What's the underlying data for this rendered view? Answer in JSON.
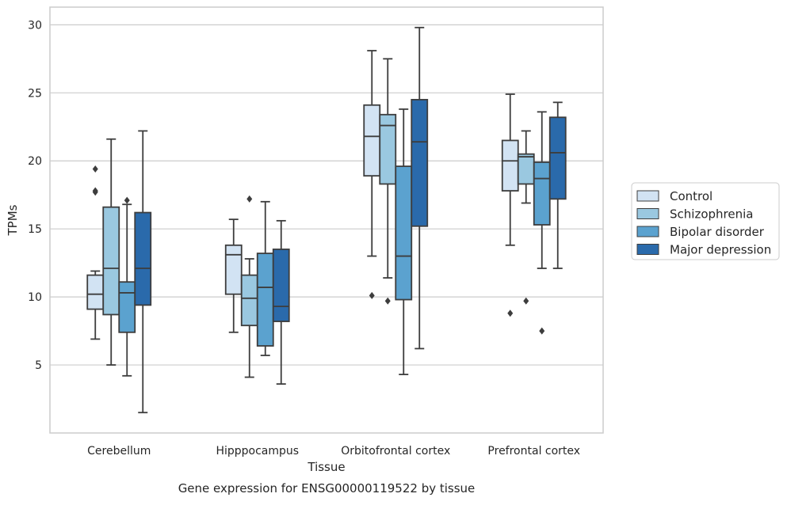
{
  "chart_data": {
    "type": "boxplot",
    "title": "",
    "caption": "Gene expression for ENSG00000119522 by tissue",
    "xlabel": "Tissue",
    "ylabel": "TPMs",
    "ylim": [
      0,
      31.3
    ],
    "yticks": [
      5,
      10,
      15,
      20,
      25,
      30
    ],
    "grid": "horizontal",
    "legend_position": "outside-right",
    "categories": [
      "Cerebellum",
      "Hipppocampus",
      "Orbitofrontal cortex",
      "Prefrontal cortex"
    ],
    "series": [
      {
        "name": "Control",
        "color": "#d2e3f3",
        "boxes": [
          {
            "whisker_low": 6.9,
            "q1": 9.1,
            "median": 10.2,
            "q3": 11.6,
            "whisker_high": 11.9,
            "outliers": [
              17.7,
              17.8,
              19.4
            ]
          },
          {
            "whisker_low": 7.4,
            "q1": 10.2,
            "median": 13.1,
            "q3": 13.8,
            "whisker_high": 15.7,
            "outliers": []
          },
          {
            "whisker_low": 13.0,
            "q1": 18.9,
            "median": 21.8,
            "q3": 24.1,
            "whisker_high": 28.1,
            "outliers": [
              10.1
            ]
          },
          {
            "whisker_low": 13.8,
            "q1": 17.8,
            "median": 20.0,
            "q3": 21.5,
            "whisker_high": 24.9,
            "outliers": [
              8.8
            ]
          }
        ]
      },
      {
        "name": "Schizophrenia",
        "color": "#9ac8e0",
        "boxes": [
          {
            "whisker_low": 5.0,
            "q1": 8.7,
            "median": 12.1,
            "q3": 16.6,
            "whisker_high": 21.6,
            "outliers": []
          },
          {
            "whisker_low": 4.1,
            "q1": 7.9,
            "median": 9.9,
            "q3": 11.6,
            "whisker_high": 12.8,
            "outliers": [
              17.2
            ]
          },
          {
            "whisker_low": 11.4,
            "q1": 18.3,
            "median": 22.6,
            "q3": 23.4,
            "whisker_high": 27.5,
            "outliers": [
              9.7
            ]
          },
          {
            "whisker_low": 16.9,
            "q1": 18.3,
            "median": 20.3,
            "q3": 20.5,
            "whisker_high": 22.2,
            "outliers": [
              9.7
            ]
          }
        ]
      },
      {
        "name": "Bipolar disorder",
        "color": "#5ba2cf",
        "boxes": [
          {
            "whisker_low": 4.2,
            "q1": 7.4,
            "median": 10.3,
            "q3": 11.1,
            "whisker_high": 16.8,
            "outliers": [
              17.1
            ]
          },
          {
            "whisker_low": 5.7,
            "q1": 6.4,
            "median": 10.7,
            "q3": 13.2,
            "whisker_high": 17.0,
            "outliers": []
          },
          {
            "whisker_low": 4.3,
            "q1": 9.8,
            "median": 13.0,
            "q3": 19.6,
            "whisker_high": 23.8,
            "outliers": []
          },
          {
            "whisker_low": 12.1,
            "q1": 15.3,
            "median": 18.7,
            "q3": 19.9,
            "whisker_high": 23.6,
            "outliers": [
              7.5
            ]
          }
        ]
      },
      {
        "name": "Major depression",
        "color": "#2a6aab",
        "boxes": [
          {
            "whisker_low": 1.5,
            "q1": 9.4,
            "median": 12.1,
            "q3": 16.2,
            "whisker_high": 22.2,
            "outliers": []
          },
          {
            "whisker_low": 3.6,
            "q1": 8.2,
            "median": 9.3,
            "q3": 13.5,
            "whisker_high": 15.6,
            "outliers": []
          },
          {
            "whisker_low": 6.2,
            "q1": 15.2,
            "median": 21.4,
            "q3": 24.5,
            "whisker_high": 29.8,
            "outliers": []
          },
          {
            "whisker_low": 12.1,
            "q1": 17.2,
            "median": 20.6,
            "q3": 23.2,
            "whisker_high": 24.3,
            "outliers": []
          }
        ]
      }
    ]
  },
  "colors": {
    "grid": "#cccccc",
    "frame": "#cccccc",
    "box_edge": "#3d3d3d",
    "background": "#ffffff"
  }
}
